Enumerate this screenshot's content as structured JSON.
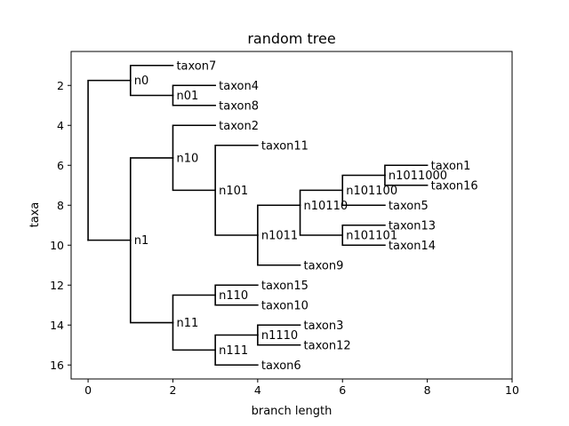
{
  "chart_data": {
    "type": "tree",
    "title": "random tree",
    "xlabel": "branch length",
    "ylabel": "taxa",
    "xlim": [
      -0.4,
      10
    ],
    "ylim": [
      0.3,
      16.7
    ],
    "y_inverted": true,
    "xticks": [
      0,
      2,
      4,
      6,
      8,
      10
    ],
    "yticks": [
      2,
      4,
      6,
      8,
      10,
      12,
      14,
      16
    ],
    "grid": false,
    "nodes": [
      {
        "label": "",
        "x": 0,
        "y": 9.75
      },
      {
        "label": "n0",
        "x": 1,
        "y": 1.75
      },
      {
        "label": "n1",
        "x": 1,
        "y": 9.75
      },
      {
        "label": "n01",
        "x": 2,
        "y": 2.5
      },
      {
        "label": "n10",
        "x": 2,
        "y": 5.63
      },
      {
        "label": "n11",
        "x": 2,
        "y": 13.88
      },
      {
        "label": "n101",
        "x": 3,
        "y": 7.25
      },
      {
        "label": "n110",
        "x": 3,
        "y": 12.5
      },
      {
        "label": "n111",
        "x": 3,
        "y": 15.25
      },
      {
        "label": "n1011",
        "x": 4,
        "y": 9.5
      },
      {
        "label": "n1110",
        "x": 4,
        "y": 14.5
      },
      {
        "label": "n10110",
        "x": 5,
        "y": 8.0
      },
      {
        "label": "n101100",
        "x": 6,
        "y": 7.25
      },
      {
        "label": "n101101",
        "x": 6,
        "y": 9.5
      },
      {
        "label": "n1011000",
        "x": 7,
        "y": 6.5
      },
      {
        "label": "taxon7",
        "x": 2,
        "y": 1
      },
      {
        "label": "taxon4",
        "x": 3,
        "y": 2
      },
      {
        "label": "taxon8",
        "x": 3,
        "y": 3
      },
      {
        "label": "taxon2",
        "x": 3,
        "y": 4
      },
      {
        "label": "taxon11",
        "x": 4,
        "y": 5
      },
      {
        "label": "taxon1",
        "x": 8,
        "y": 6
      },
      {
        "label": "taxon16",
        "x": 8,
        "y": 7
      },
      {
        "label": "taxon5",
        "x": 7,
        "y": 8
      },
      {
        "label": "taxon13",
        "x": 7,
        "y": 9
      },
      {
        "label": "taxon14",
        "x": 7,
        "y": 10
      },
      {
        "label": "taxon9",
        "x": 5,
        "y": 11
      },
      {
        "label": "taxon15",
        "x": 4,
        "y": 12
      },
      {
        "label": "taxon10",
        "x": 4,
        "y": 13
      },
      {
        "label": "taxon3",
        "x": 5,
        "y": 14
      },
      {
        "label": "taxon12",
        "x": 5,
        "y": 15
      },
      {
        "label": "taxon6",
        "x": 4,
        "y": 16
      }
    ],
    "edges": [
      [
        "",
        "n0"
      ],
      [
        "",
        "n1"
      ],
      [
        "n0",
        "taxon7"
      ],
      [
        "n0",
        "n01"
      ],
      [
        "n01",
        "taxon4"
      ],
      [
        "n01",
        "taxon8"
      ],
      [
        "n1",
        "n10"
      ],
      [
        "n1",
        "n11"
      ],
      [
        "n10",
        "taxon2"
      ],
      [
        "n10",
        "n101"
      ],
      [
        "n101",
        "taxon11"
      ],
      [
        "n101",
        "n1011"
      ],
      [
        "n1011",
        "n10110"
      ],
      [
        "n1011",
        "taxon9"
      ],
      [
        "n10110",
        "n101100"
      ],
      [
        "n10110",
        "n101101"
      ],
      [
        "n101100",
        "n1011000"
      ],
      [
        "n101100",
        "taxon5"
      ],
      [
        "n1011000",
        "taxon1"
      ],
      [
        "n1011000",
        "taxon16"
      ],
      [
        "n101101",
        "taxon13"
      ],
      [
        "n101101",
        "taxon14"
      ],
      [
        "n11",
        "n110"
      ],
      [
        "n11",
        "n111"
      ],
      [
        "n110",
        "taxon15"
      ],
      [
        "n110",
        "taxon10"
      ],
      [
        "n111",
        "n1110"
      ],
      [
        "n111",
        "taxon6"
      ],
      [
        "n1110",
        "taxon3"
      ],
      [
        "n1110",
        "taxon12"
      ]
    ]
  }
}
